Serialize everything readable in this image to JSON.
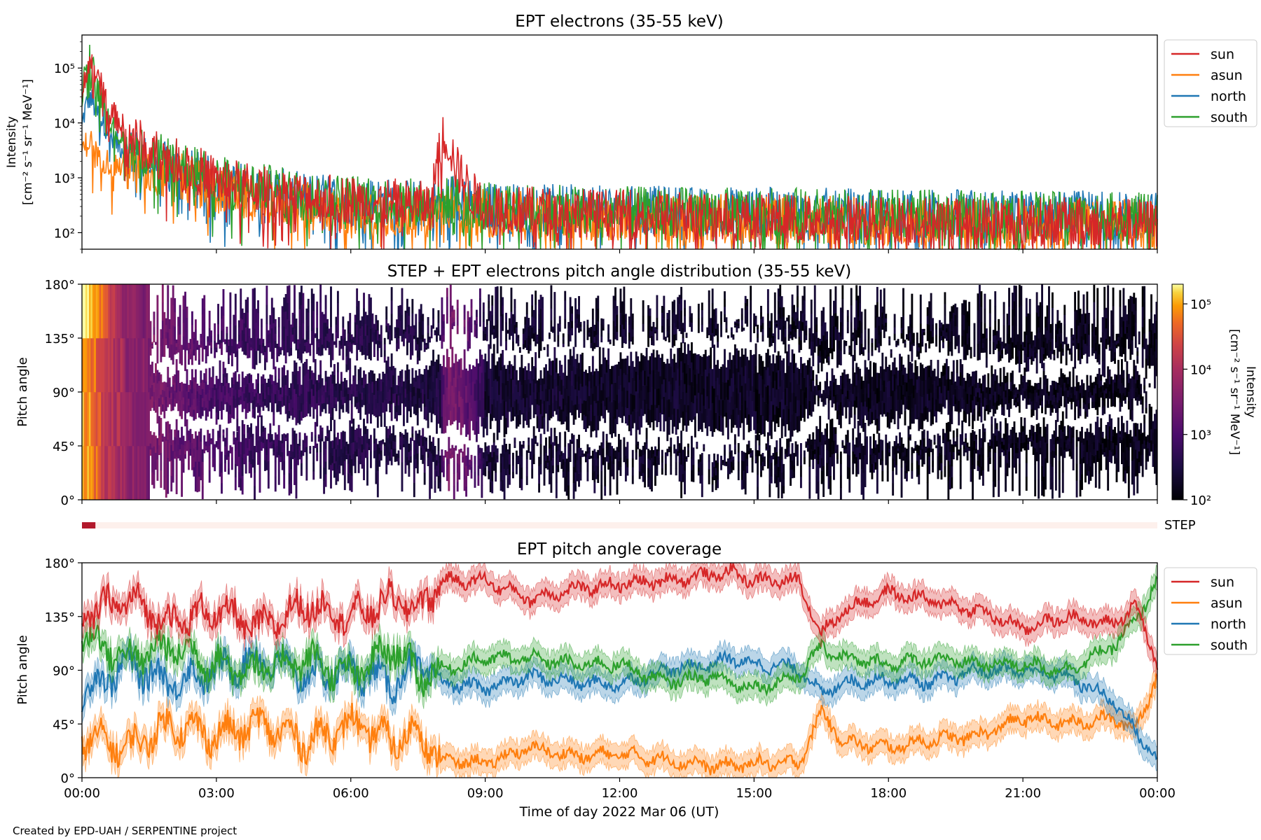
{
  "figure": {
    "credit": "Created by EPD-UAH / SERPENTINE project",
    "xlabel": "Time of day 2022 Mar 06 (UT)",
    "x_ticks": [
      "00:00",
      "03:00",
      "06:00",
      "09:00",
      "12:00",
      "15:00",
      "18:00",
      "21:00",
      "00:00"
    ]
  },
  "panel1": {
    "title": "EPT electrons (35-55 keV)",
    "ylabel_line1": "Intensity",
    "ylabel_line2": "[cm⁻² s⁻¹ sr⁻¹ MeV⁻¹]",
    "yticks": [
      "10²",
      "10³",
      "10⁴",
      "10⁵"
    ]
  },
  "panel2": {
    "title": "STEP + EPT electrons pitch angle distribution (35-55 keV)",
    "ylabel": "Pitch angle",
    "yticks": [
      "0°",
      "45°",
      "90°",
      "135°",
      "180°"
    ],
    "colorbar_label_line1": "Intensity",
    "colorbar_label_line2": "[cm⁻² s⁻¹ sr⁻¹ MeV⁻¹]",
    "colorbar_ticks": [
      "10²",
      "10³",
      "10⁴",
      "10⁵"
    ]
  },
  "step_bar": {
    "label": "STEP",
    "active_until_hours": 0.3
  },
  "panel3": {
    "title": "EPT pitch angle coverage",
    "ylabel": "Pitch angle",
    "yticks": [
      "0°",
      "45°",
      "90°",
      "135°",
      "180°"
    ]
  },
  "legend": [
    {
      "name": "sun",
      "color": "#d62728"
    },
    {
      "name": "asun",
      "color": "#ff7f0e"
    },
    {
      "name": "north",
      "color": "#1f77b4"
    },
    {
      "name": "south",
      "color": "#2ca02c"
    }
  ],
  "chart_data": [
    {
      "type": "line",
      "title": "EPT electrons (35-55 keV)",
      "ylabel": "Intensity [cm⁻² s⁻¹ sr⁻¹ MeV⁻¹]",
      "xlabel": "Time of day 2022 Mar 06 (UT)",
      "yscale": "log",
      "ylim": [
        50,
        400000
      ],
      "xlim": [
        "2022-03-06 00:00",
        "2022-03-07 00:00"
      ],
      "x": [
        "00:00",
        "00:10",
        "00:20",
        "00:40",
        "01:00",
        "01:30",
        "02:00",
        "03:00",
        "04:00",
        "05:00",
        "06:00",
        "07:00",
        "07:50",
        "08:05",
        "08:20",
        "08:40",
        "09:00",
        "10:00",
        "12:00",
        "14:00",
        "16:00",
        "18:00",
        "20:00",
        "22:00",
        "24:00"
      ],
      "series": [
        {
          "name": "sun",
          "values": [
            20000,
            140000,
            60000,
            15000,
            6000,
            3000,
            2000,
            900,
            600,
            450,
            400,
            350,
            300,
            6000,
            1500,
            500,
            300,
            250,
            220,
            200,
            180,
            170,
            160,
            160,
            150
          ]
        },
        {
          "name": "asun",
          "values": [
            3000,
            5000,
            2500,
            1800,
            1500,
            1300,
            1100,
            600,
            400,
            300,
            250,
            230,
            220,
            250,
            300,
            250,
            220,
            200,
            190,
            180,
            170,
            160,
            150,
            150,
            150
          ]
        },
        {
          "name": "north",
          "values": [
            8000,
            30000,
            15000,
            5000,
            3000,
            2000,
            1500,
            800,
            600,
            450,
            400,
            350,
            330,
            350,
            500,
            350,
            300,
            280,
            260,
            250,
            240,
            230,
            220,
            210,
            200
          ]
        },
        {
          "name": "south",
          "values": [
            25000,
            200000,
            40000,
            8000,
            4000,
            2500,
            2000,
            900,
            650,
            480,
            420,
            360,
            330,
            350,
            450,
            330,
            300,
            270,
            250,
            240,
            230,
            220,
            210,
            200,
            190
          ]
        }
      ]
    },
    {
      "type": "heatmap",
      "title": "STEP + EPT electrons pitch angle distribution (35-55 keV)",
      "ylabel": "Pitch angle",
      "ylim": [
        0,
        180
      ],
      "colorbar": {
        "label": "Intensity [cm⁻² s⁻¹ sr⁻¹ MeV⁻¹]",
        "scale": "log",
        "range": [
          100,
          200000
        ],
        "colormap": "inferno"
      },
      "x_hours": [
        0,
        0.5,
        1,
        2,
        3,
        4,
        6,
        8,
        8.2,
        9,
        12,
        15,
        18,
        21,
        24
      ],
      "intensity_peak": [
        150000,
        20000,
        5000,
        2000,
        900,
        600,
        400,
        300,
        3000,
        250,
        200,
        180,
        170,
        160,
        150
      ]
    },
    {
      "type": "line",
      "title": "EPT pitch angle coverage",
      "ylabel": "Pitch angle",
      "ylim": [
        0,
        180
      ],
      "x_hours": [
        0,
        1,
        2,
        3,
        4,
        5,
        6,
        7,
        7.5,
        8,
        9,
        10,
        11,
        12,
        13,
        14,
        14.5,
        15,
        16,
        16.5,
        17,
        18,
        19,
        20,
        21,
        22,
        23,
        23.5,
        24
      ],
      "series": [
        {
          "name": "sun",
          "values": [
            135,
            150,
            130,
            140,
            125,
            145,
            135,
            150,
            140,
            165,
            165,
            150,
            158,
            162,
            165,
            170,
            172,
            165,
            165,
            120,
            140,
            155,
            148,
            140,
            125,
            135,
            128,
            145,
            95
          ]
        },
        {
          "name": "asun",
          "values": [
            35,
            25,
            45,
            35,
            45,
            30,
            45,
            30,
            40,
            15,
            12,
            25,
            18,
            20,
            15,
            10,
            10,
            12,
            12,
            55,
            30,
            25,
            32,
            35,
            50,
            45,
            50,
            40,
            85
          ]
        },
        {
          "name": "north",
          "values": [
            70,
            95,
            80,
            90,
            100,
            85,
            90,
            80,
            95,
            80,
            75,
            85,
            80,
            78,
            90,
            95,
            100,
            95,
            92,
            70,
            80,
            82,
            80,
            90,
            90,
            85,
            65,
            40,
            15
          ]
        },
        {
          "name": "south",
          "values": [
            120,
            100,
            110,
            95,
            90,
            100,
            85,
            110,
            85,
            90,
            100,
            100,
            95,
            95,
            80,
            85,
            80,
            75,
            85,
            110,
            100,
            95,
            100,
            95,
            95,
            90,
            110,
            130,
            165
          ]
        }
      ],
      "uncertainty_band": true
    }
  ]
}
